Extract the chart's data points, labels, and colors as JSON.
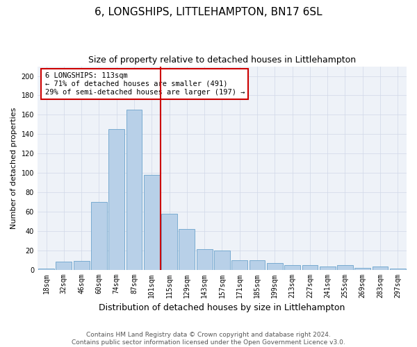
{
  "title": "6, LONGSHIPS, LITTLEHAMPTON, BN17 6SL",
  "subtitle": "Size of property relative to detached houses in Littlehampton",
  "xlabel": "Distribution of detached houses by size in Littlehampton",
  "ylabel": "Number of detached properties",
  "footer_line1": "Contains HM Land Registry data © Crown copyright and database right 2024.",
  "footer_line2": "Contains public sector information licensed under the Open Government Licence v3.0.",
  "annotation_title": "6 LONGSHIPS: 113sqm",
  "annotation_line2": "← 71% of detached houses are smaller (491)",
  "annotation_line3": "29% of semi-detached houses are larger (197) →",
  "bins": [
    "18sqm",
    "32sqm",
    "46sqm",
    "60sqm",
    "74sqm",
    "87sqm",
    "101sqm",
    "115sqm",
    "129sqm",
    "143sqm",
    "157sqm",
    "171sqm",
    "185sqm",
    "199sqm",
    "213sqm",
    "227sqm",
    "241sqm",
    "255sqm",
    "269sqm",
    "283sqm",
    "297sqm"
  ],
  "values": [
    1,
    8,
    9,
    70,
    145,
    165,
    98,
    58,
    42,
    21,
    20,
    10,
    10,
    7,
    5,
    5,
    3,
    5,
    2,
    3,
    1
  ],
  "bar_color": "#b8d0e8",
  "bar_edge_color": "#6aa3cc",
  "vline_color": "#cc0000",
  "vline_x_index": 7,
  "annotation_box_color": "#cc0000",
  "annotation_bg": "#ffffff",
  "grid_color": "#d0d8e8",
  "background_color": "#eef2f8",
  "ylim": [
    0,
    210
  ],
  "yticks": [
    0,
    20,
    40,
    60,
    80,
    100,
    120,
    140,
    160,
    180,
    200
  ],
  "title_fontsize": 11,
  "subtitle_fontsize": 9,
  "xlabel_fontsize": 9,
  "ylabel_fontsize": 8,
  "tick_fontsize": 7,
  "annotation_fontsize": 7.5,
  "footer_fontsize": 6.5
}
